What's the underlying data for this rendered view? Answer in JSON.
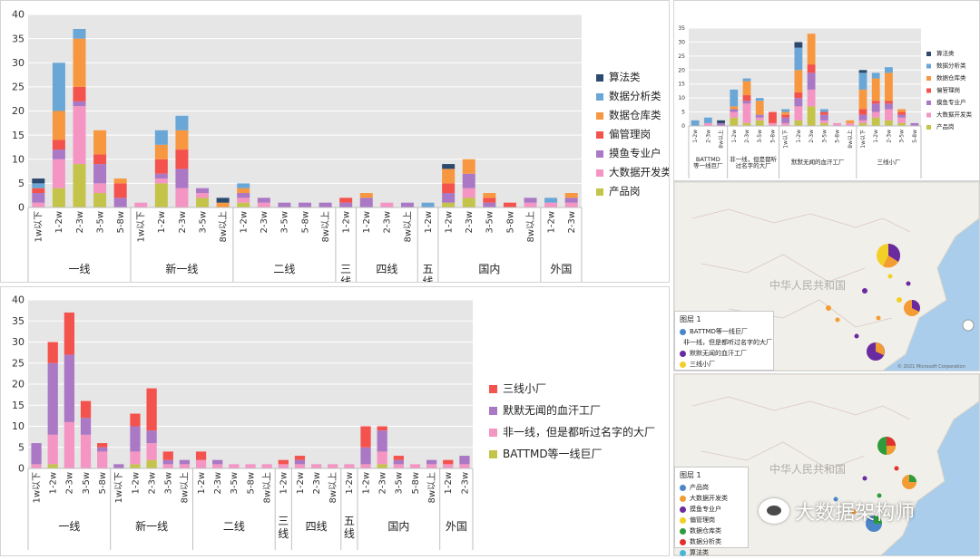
{
  "chart_data": [
    {
      "type": "bar",
      "stacked": true,
      "ylim": [
        0,
        40
      ],
      "yticks": [
        0,
        5,
        10,
        15,
        20,
        25,
        30,
        35,
        40
      ],
      "grid": true,
      "legend_position": "right",
      "categories": [
        "1w以下",
        "1-2w",
        "2-3w",
        "3-5w",
        "5-8w",
        "1w以下",
        "1-2w",
        "2-3w",
        "3-5w",
        "8w以上",
        "1-2w",
        "2-3w",
        "3-5w",
        "5-8w",
        "8w以上",
        "1-2w",
        "1-2w",
        "2-3w",
        "8w以上",
        "1-2w",
        "1-2w",
        "2-3w",
        "3-5w",
        "5-8w",
        "8w以上",
        "1-2w",
        "2-3w"
      ],
      "groups": [
        {
          "label": "一线",
          "count": 5
        },
        {
          "label": "新一线",
          "count": 5
        },
        {
          "label": "二线",
          "count": 5
        },
        {
          "label": "三线",
          "count": 1
        },
        {
          "label": "四线",
          "count": 3
        },
        {
          "label": "五线",
          "count": 1
        },
        {
          "label": "国内",
          "count": 5
        },
        {
          "label": "外国",
          "count": 2
        }
      ],
      "series": [
        {
          "name": "产品岗",
          "color": "#c4c44a",
          "values": [
            0,
            4,
            9,
            3,
            0,
            0,
            5,
            0,
            2,
            0,
            1,
            0,
            0,
            0,
            0,
            0,
            0,
            0,
            0,
            0,
            1,
            2,
            0,
            0,
            0,
            0,
            0
          ]
        },
        {
          "name": "大数据开发类",
          "color": "#f495c4",
          "values": [
            1,
            6,
            12,
            2,
            0,
            1,
            1,
            4,
            1,
            0,
            1,
            1,
            0,
            0,
            0,
            0,
            0,
            1,
            0,
            0,
            0,
            2,
            0,
            0,
            1,
            1,
            1
          ]
        },
        {
          "name": "摸鱼专业户",
          "color": "#aa78c4",
          "values": [
            2,
            2,
            1,
            4,
            2,
            0,
            1,
            4,
            1,
            0,
            1,
            1,
            1,
            1,
            1,
            1,
            2,
            0,
            1,
            0,
            2,
            3,
            1,
            0,
            1,
            0,
            1
          ]
        },
        {
          "name": "偏管理岗",
          "color": "#f4524d",
          "values": [
            1,
            2,
            3,
            2,
            3,
            0,
            3,
            4,
            0,
            0,
            0,
            0,
            0,
            0,
            0,
            1,
            0,
            0,
            0,
            0,
            2,
            0,
            1,
            1,
            0,
            0,
            0
          ]
        },
        {
          "name": "数据仓库类",
          "color": "#f79840",
          "values": [
            0,
            6,
            10,
            5,
            1,
            0,
            3,
            4,
            0,
            1,
            1,
            0,
            0,
            0,
            0,
            0,
            1,
            0,
            0,
            0,
            3,
            3,
            1,
            0,
            0,
            0,
            1
          ]
        },
        {
          "name": "数据分析类",
          "color": "#6aa6d6",
          "values": [
            1,
            10,
            2,
            0,
            0,
            0,
            3,
            3,
            0,
            0,
            1,
            0,
            0,
            0,
            0,
            0,
            0,
            0,
            0,
            1,
            0,
            0,
            0,
            0,
            0,
            1,
            0
          ]
        },
        {
          "name": "算法类",
          "color": "#2c4a6e",
          "values": [
            1,
            0,
            0,
            0,
            0,
            0,
            0,
            0,
            0,
            1,
            0,
            0,
            0,
            0,
            0,
            0,
            0,
            0,
            0,
            0,
            1,
            0,
            0,
            0,
            0,
            0,
            0
          ]
        }
      ]
    },
    {
      "type": "bar",
      "stacked": true,
      "ylim": [
        0,
        40
      ],
      "yticks": [
        0,
        5,
        10,
        15,
        20,
        25,
        30,
        35,
        40
      ],
      "grid": true,
      "legend_position": "right",
      "categories": [
        "1w以下",
        "1-2w",
        "2-3w",
        "3-5w",
        "5-8w",
        "1w以下",
        "1-2w",
        "2-3w",
        "3-5w",
        "8w以上",
        "1-2w",
        "2-3w",
        "3-5w",
        "5-8w",
        "8w以上",
        "1-2w",
        "1-2w",
        "2-3w",
        "8w以上",
        "1-2w",
        "1-2w",
        "2-3w",
        "3-5w",
        "5-8w",
        "8w以上",
        "1-2w",
        "2-3w"
      ],
      "groups": [
        {
          "label": "一线",
          "count": 5
        },
        {
          "label": "新一线",
          "count": 5
        },
        {
          "label": "二线",
          "count": 5
        },
        {
          "label": "三线",
          "count": 1
        },
        {
          "label": "四线",
          "count": 3
        },
        {
          "label": "五线",
          "count": 1
        },
        {
          "label": "国内",
          "count": 5
        },
        {
          "label": "外国",
          "count": 2
        }
      ],
      "series": [
        {
          "name": "BATTMD等一线巨厂",
          "color": "#c4c44a",
          "values": [
            0,
            1,
            0,
            0,
            0,
            0,
            1,
            2,
            0,
            0,
            0,
            0,
            0,
            0,
            0,
            0,
            0,
            0,
            0,
            0,
            0,
            1,
            0,
            0,
            0,
            0,
            0
          ]
        },
        {
          "name": "非一线，但是都听过名字的大厂",
          "color": "#f495c4",
          "values": [
            1,
            7,
            11,
            8,
            4,
            0,
            3,
            4,
            1,
            1,
            2,
            1,
            1,
            1,
            1,
            1,
            1,
            1,
            1,
            1,
            1,
            3,
            1,
            1,
            1,
            1,
            1
          ]
        },
        {
          "name": "默默无闻的血汗工厂",
          "color": "#aa78c4",
          "values": [
            5,
            17,
            16,
            4,
            1,
            1,
            6,
            3,
            1,
            1,
            0,
            1,
            0,
            0,
            0,
            0,
            1,
            0,
            0,
            0,
            4,
            5,
            1,
            0,
            1,
            0,
            2
          ]
        },
        {
          "name": "三线小厂",
          "color": "#f4524d",
          "values": [
            0,
            5,
            10,
            4,
            1,
            0,
            3,
            10,
            2,
            0,
            2,
            0,
            0,
            0,
            0,
            1,
            1,
            0,
            0,
            0,
            5,
            1,
            1,
            0,
            0,
            1,
            0
          ]
        }
      ]
    },
    {
      "type": "bar",
      "stacked": true,
      "ylim": [
        0,
        35
      ],
      "yticks": [
        0,
        5,
        10,
        15,
        20,
        25,
        30,
        35
      ],
      "grid": true,
      "legend_position": "right",
      "categories": [
        "1-2w",
        "2-3w",
        "8w以上",
        "1-2w",
        "2-3w",
        "3-5w",
        "5-8w",
        "1w以下",
        "1-2w",
        "2-3w",
        "3-5w",
        "5-8w",
        "8w以上",
        "1w以下",
        "1-2w",
        "2-3w",
        "3-5w",
        "5-8w"
      ],
      "groups": [
        {
          "label": "BATTMD等一线巨厂",
          "count": 3
        },
        {
          "label": "非一线，但是都听过名字的大厂",
          "count": 4
        },
        {
          "label": "默默无闻的血汗工厂",
          "count": 6
        },
        {
          "label": "三线小厂",
          "count": 5
        }
      ],
      "series": [
        {
          "name": "产品岗",
          "color": "#c4c44a",
          "values": [
            0,
            0,
            0,
            3,
            1,
            2,
            0,
            0,
            2,
            7,
            1,
            0,
            0,
            1,
            3,
            2,
            1,
            0
          ]
        },
        {
          "name": "大数据开发类",
          "color": "#f495c4",
          "values": [
            0,
            1,
            0,
            2,
            7,
            1,
            1,
            1,
            5,
            6,
            1,
            1,
            1,
            1,
            2,
            4,
            2,
            0
          ]
        },
        {
          "name": "摸鱼专业户",
          "color": "#aa78c4",
          "values": [
            0,
            0,
            1,
            1,
            1,
            1,
            0,
            2,
            3,
            6,
            2,
            0,
            0,
            2,
            3,
            2,
            1,
            1
          ]
        },
        {
          "name": "偏管理岗",
          "color": "#f4524d",
          "values": [
            0,
            0,
            0,
            0,
            2,
            0,
            4,
            1,
            2,
            3,
            1,
            0,
            0,
            2,
            1,
            1,
            1,
            0
          ]
        },
        {
          "name": "数据仓库类",
          "color": "#f79840",
          "values": [
            0,
            0,
            0,
            1,
            5,
            5,
            0,
            1,
            8,
            11,
            0,
            0,
            1,
            7,
            8,
            10,
            1,
            0
          ]
        },
        {
          "name": "数据分析类",
          "color": "#6aa6d6",
          "values": [
            2,
            2,
            0,
            6,
            1,
            1,
            0,
            1,
            8,
            0,
            1,
            0,
            0,
            6,
            2,
            2,
            0,
            0
          ]
        },
        {
          "name": "算法类",
          "color": "#2c4a6e",
          "values": [
            0,
            0,
            1,
            0,
            0,
            0,
            0,
            0,
            2,
            0,
            0,
            0,
            0,
            1,
            0,
            0,
            0,
            0
          ]
        }
      ]
    }
  ],
  "maps": [
    {
      "label": "中华人民共和国",
      "legend_title": "图层 1",
      "legend_items": [
        {
          "label": "BATTMD等一线巨厂",
          "color": "#4a86c8"
        },
        {
          "label": "非一线，但是都听过名字的大厂",
          "color": "#f39c33"
        },
        {
          "label": "默默无闻的血汗工厂",
          "color": "#6a2aa0"
        },
        {
          "label": "三线小厂",
          "color": "#f2d027"
        }
      ],
      "copyright": "© 2021 Microsoft Corporation"
    },
    {
      "label": "中华人民共和国",
      "legend_title": "图层 1",
      "legend_items": [
        {
          "label": "产品岗",
          "color": "#4a86c8"
        },
        {
          "label": "大数据开发类",
          "color": "#f39c33"
        },
        {
          "label": "摸鱼专业户",
          "color": "#6a2aa0"
        },
        {
          "label": "偏管理岗",
          "color": "#f2d027"
        },
        {
          "label": "数据仓库类",
          "color": "#2e9c3a"
        },
        {
          "label": "数据分析类",
          "color": "#e2312c"
        },
        {
          "label": "算法类",
          "color": "#4ab6d6"
        }
      ]
    }
  ],
  "watermark": "大数据架构师"
}
